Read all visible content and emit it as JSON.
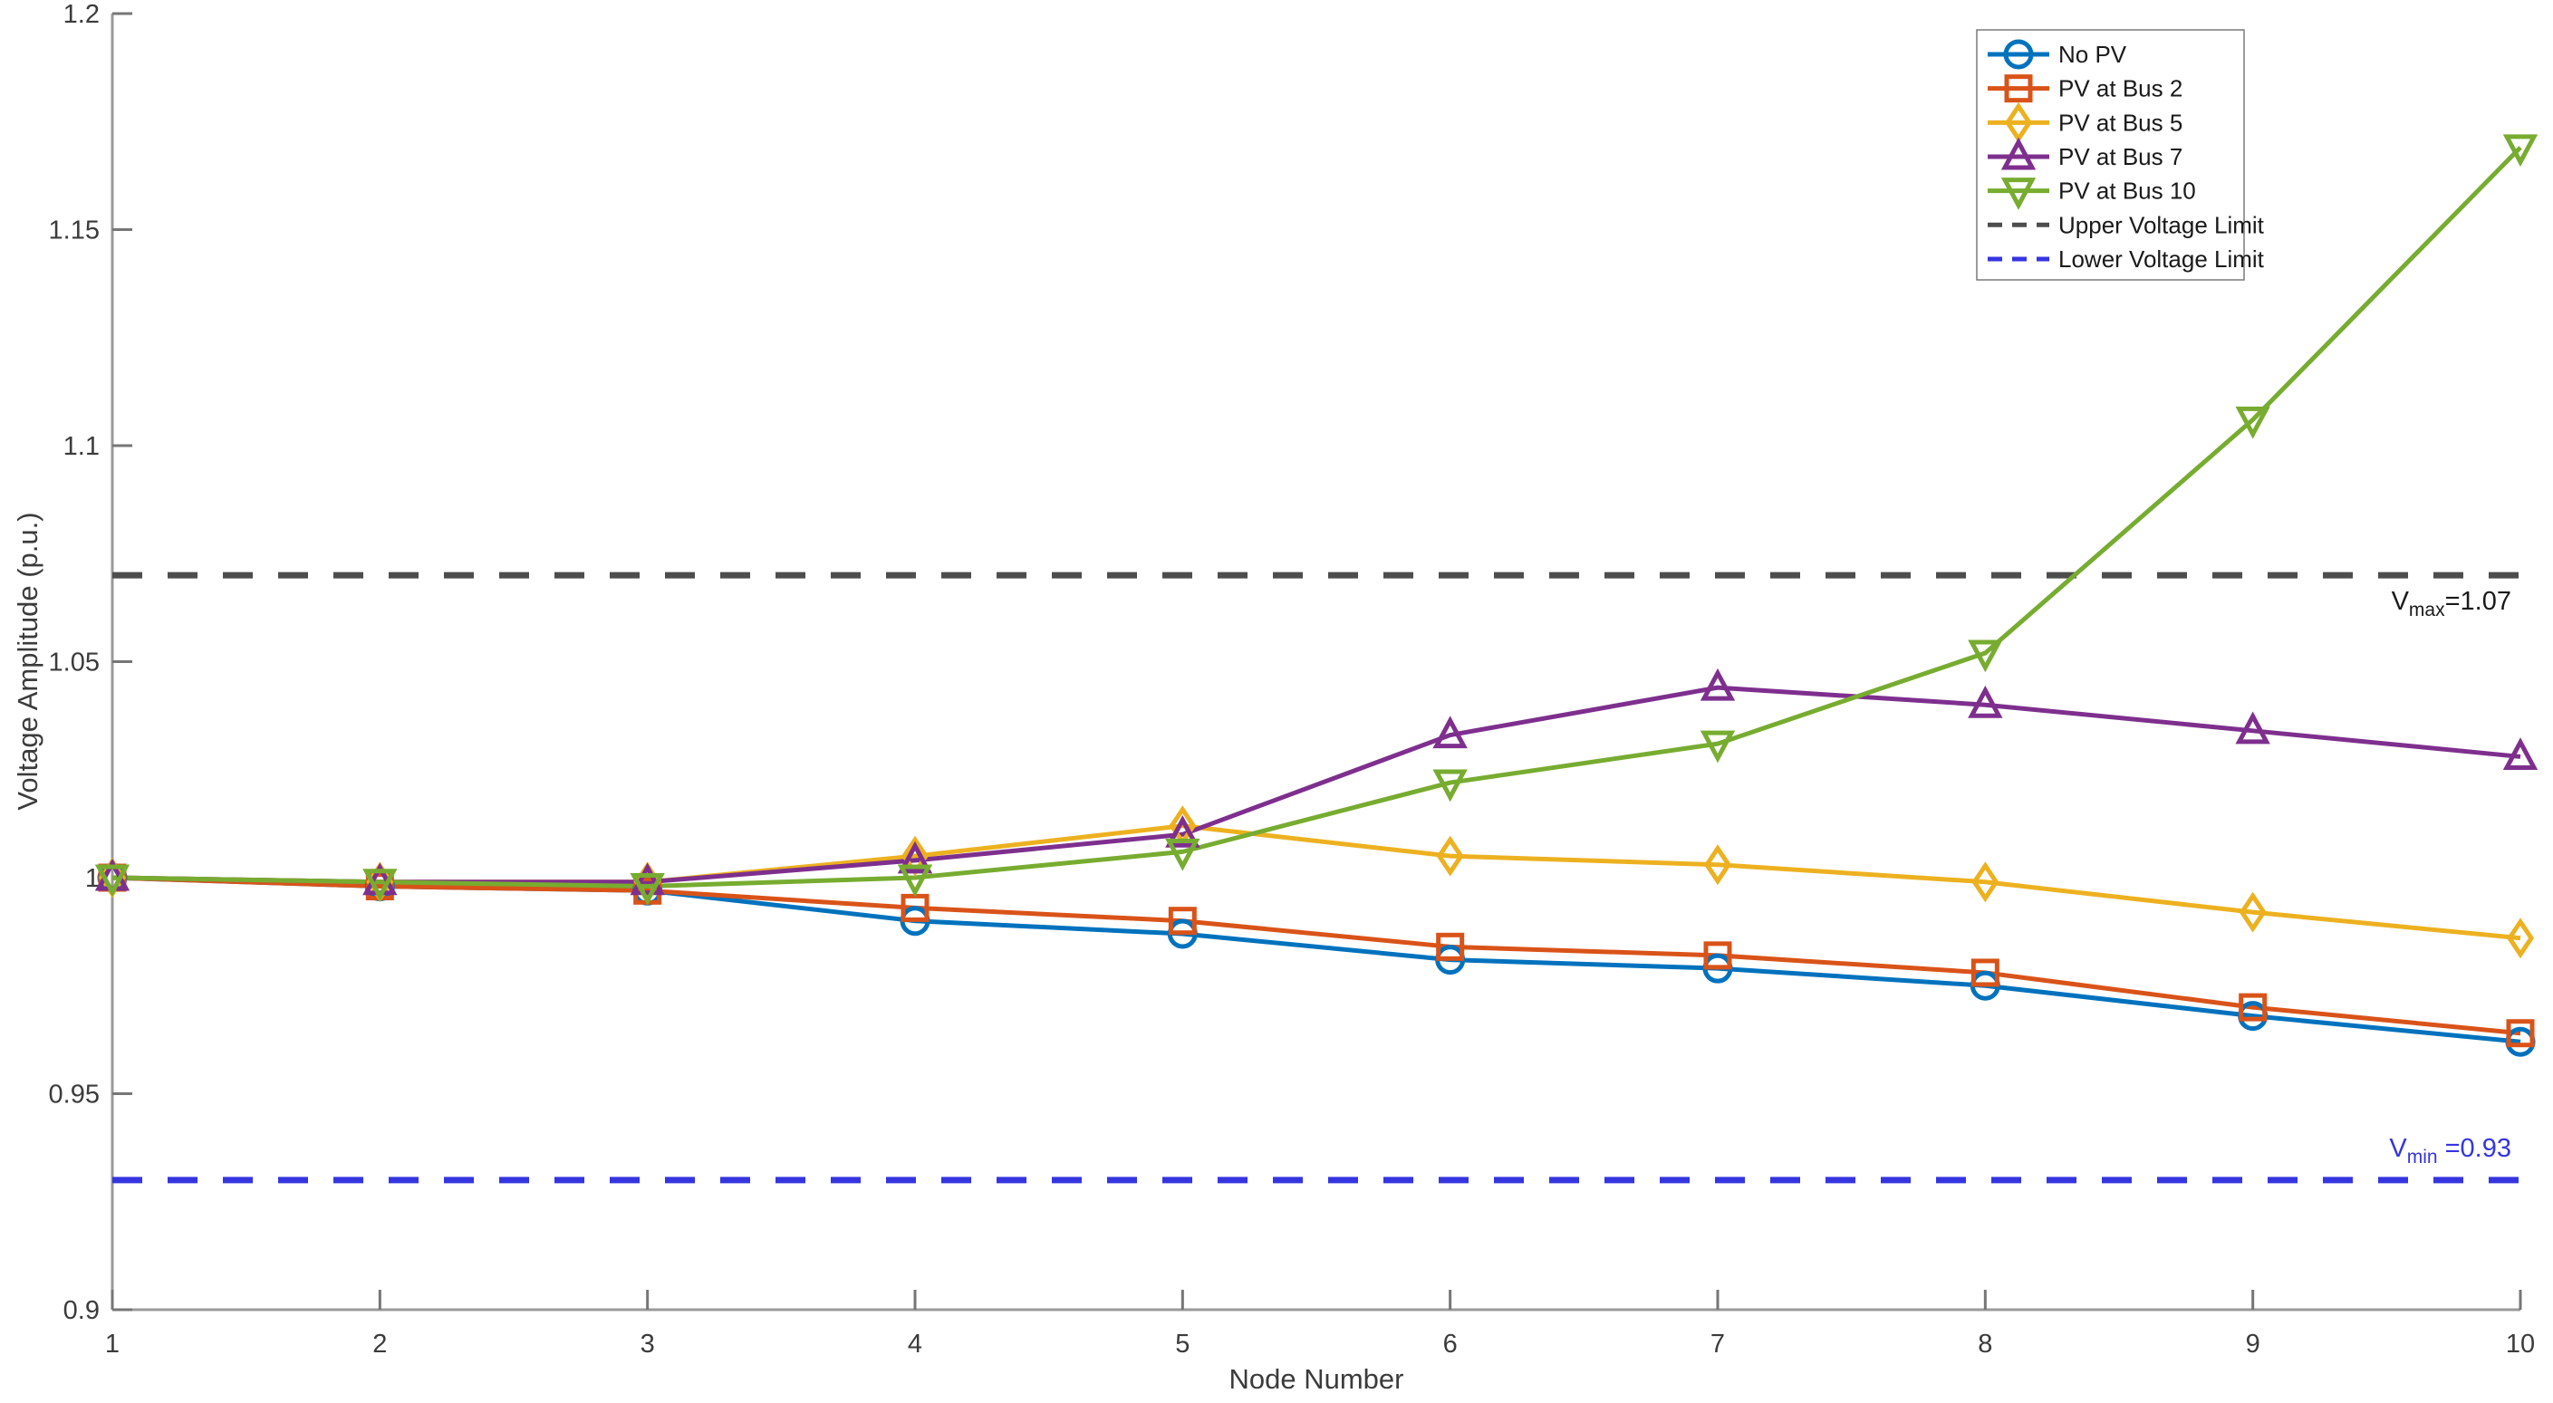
{
  "figure": {
    "background": "#ffffff",
    "axis_color": "#9a9a9a",
    "tick_color": "#767676",
    "tick_label_color": "#3b3b3b"
  },
  "chart_data": {
    "type": "line",
    "title": "",
    "xlabel": "Node Number",
    "ylabel": "Voltage Amplitude (p.u.)",
    "xlim": [
      1,
      10
    ],
    "ylim": [
      0.9,
      1.2
    ],
    "grid": false,
    "legend_position": "top-right",
    "xticks": [
      1,
      2,
      3,
      4,
      5,
      6,
      7,
      8,
      9,
      10
    ],
    "xtick_labels": [
      "1",
      "2",
      "3",
      "4",
      "5",
      "6",
      "7",
      "8",
      "9",
      "10"
    ],
    "yticks": [
      0.9,
      0.95,
      1.0,
      1.05,
      1.1,
      1.15,
      1.2
    ],
    "ytick_labels": [
      "0.9",
      "0.95",
      "1",
      "1.05",
      "1.1",
      "1.15",
      "1.2"
    ],
    "x": [
      1,
      2,
      3,
      4,
      5,
      6,
      7,
      8,
      9,
      10
    ],
    "series": [
      {
        "name": "No PV",
        "color": "#0072BD",
        "marker": "circle",
        "values": [
          1.0,
          0.998,
          0.997,
          0.99,
          0.987,
          0.981,
          0.979,
          0.975,
          0.968,
          0.962
        ]
      },
      {
        "name": "PV at Bus 2",
        "color": "#D95319",
        "marker": "square",
        "values": [
          1.0,
          0.998,
          0.997,
          0.993,
          0.99,
          0.984,
          0.982,
          0.978,
          0.97,
          0.964
        ]
      },
      {
        "name": "PV at Bus 5",
        "color": "#EDB120",
        "marker": "diamond",
        "values": [
          1.0,
          0.999,
          0.999,
          1.005,
          1.012,
          1.005,
          1.003,
          0.999,
          0.992,
          0.986
        ]
      },
      {
        "name": "PV at Bus 7",
        "color": "#7E2F8E",
        "marker": "triangle-up",
        "values": [
          1.0,
          0.999,
          0.999,
          1.004,
          1.01,
          1.033,
          1.044,
          1.04,
          1.034,
          1.028
        ]
      },
      {
        "name": "PV at Bus 10",
        "color": "#77AC30",
        "marker": "triangle-down",
        "values": [
          1.0,
          0.999,
          0.998,
          1.0,
          1.006,
          1.022,
          1.031,
          1.052,
          1.106,
          1.169
        ]
      }
    ],
    "limit_lines": [
      {
        "name": "Upper Voltage Limit",
        "value": 1.07,
        "color": "#4D4D4D",
        "style": "dashed"
      },
      {
        "name": "Lower Voltage Limit",
        "value": 0.93,
        "color": "#3535E0",
        "style": "dashed"
      }
    ],
    "annotations": [
      {
        "prefix": "V",
        "sub": "max",
        "suffix": "=1.07",
        "value": 1.07,
        "color": "#1a1a1a"
      },
      {
        "prefix": "V",
        "sub": "min",
        "suffix": " =0.93",
        "value": 0.93,
        "color": "#3535E0"
      }
    ]
  }
}
